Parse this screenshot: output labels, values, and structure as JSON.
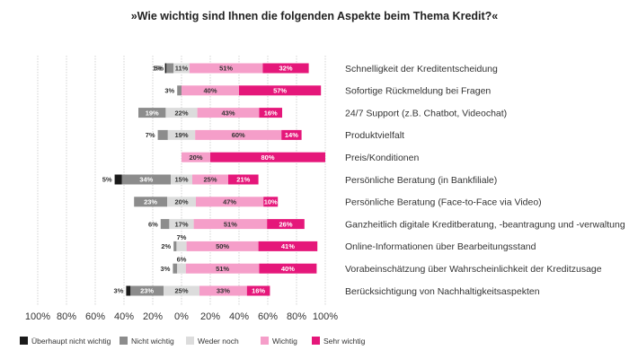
{
  "chart_data": {
    "type": "bar",
    "orientation": "horizontal",
    "stacked": "diverging",
    "title": "»Wie wichtig sind Ihnen die folgenden Aspekte beim Thema Kredit?«",
    "xlabel": "",
    "ylabel": "",
    "xlim": [
      -100,
      100
    ],
    "x_tick_labels": [
      "100%",
      "80%",
      "60%",
      "40%",
      "20%",
      "0%",
      "20%",
      "40%",
      "60%",
      "80%",
      "100%"
    ],
    "grid": true,
    "legend_position": "bottom",
    "categories": [
      "Schnelligkeit der Kreditentscheidung",
      "Sofortige Rückmeldung bei Fragen",
      "24/7 Support (z.B. Chatbot, Videochat)",
      "Produktvielfalt",
      "Preis/Konditionen",
      "Persönliche Beratung (in Bankfiliale)",
      "Persönliche Beratung (Face-to-Face via Video)",
      "Ganzheitlich digitale Kreditberatung, -beantragung und -verwaltung",
      "Online-Informationen über Bearbeitungsstand",
      "Vorabeinschätzung über Wahrscheinlichkeit der Kreditzusage",
      "Berücksichtigung von Nachhaltigkeitsaspekten"
    ],
    "series": [
      {
        "name": "Überhaupt nicht wichtig",
        "color": "#1a1a1a",
        "text_color": "#ffffff",
        "side": "negative",
        "values": [
          1,
          0,
          0,
          0,
          0,
          5,
          0,
          0,
          0,
          0,
          3
        ],
        "labels": [
          "1%",
          "",
          "",
          "",
          "",
          "5%",
          "",
          "",
          "",
          "",
          "3%"
        ]
      },
      {
        "name": "Nicht wichtig",
        "color": "#8c8c8c",
        "text_color": "#ffffff",
        "side": "negative",
        "values": [
          5,
          3,
          19,
          7,
          0,
          34,
          23,
          6,
          2,
          3,
          23
        ],
        "labels": [
          "5%",
          "3%",
          "19%",
          "7%",
          "",
          "34%",
          "23%",
          "6%",
          "2%",
          "3%",
          "23%"
        ]
      },
      {
        "name": "Weder noch",
        "color": "#dcdcdc",
        "text_color": "#333333",
        "side": "split",
        "values": [
          11,
          0,
          22,
          19,
          0,
          15,
          20,
          17,
          7,
          6,
          25
        ],
        "labels": [
          "11%",
          "",
          "22%",
          "19%",
          "",
          "15%",
          "20%",
          "17%",
          "7%",
          "6%",
          "25%"
        ]
      },
      {
        "name": "Wichtig",
        "color": "#f59ec9",
        "text_color": "#333333",
        "side": "positive",
        "values": [
          51,
          40,
          43,
          60,
          20,
          25,
          47,
          51,
          50,
          51,
          33
        ],
        "labels": [
          "51%",
          "40%",
          "43%",
          "60%",
          "20%",
          "25%",
          "47%",
          "51%",
          "50%",
          "51%",
          "33%"
        ]
      },
      {
        "name": "Sehr wichtig",
        "color": "#e5177a",
        "text_color": "#ffffff",
        "side": "positive",
        "values": [
          32,
          57,
          16,
          14,
          80,
          21,
          10,
          26,
          41,
          40,
          16
        ],
        "labels": [
          "32%",
          "57%",
          "16%",
          "14%",
          "80%",
          "21%",
          "10%",
          "26%",
          "41%",
          "40%",
          "16%"
        ]
      }
    ]
  }
}
